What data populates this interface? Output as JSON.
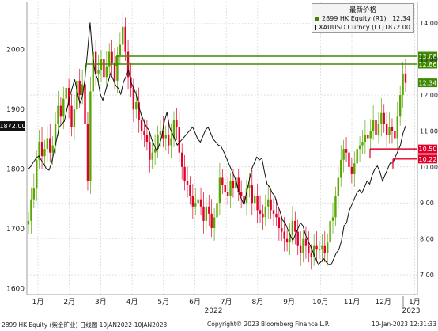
{
  "chart_data": {
    "type": "line",
    "legend_title": "最新价格",
    "legend_position": "top-right",
    "grid": true,
    "series": [
      {
        "name": "2899 HK Equity",
        "axis_tag": "(R1)",
        "last_value": "12.34",
        "color": "#3f8a00",
        "style": "candlestick",
        "axis": "right",
        "values": [
          8.5,
          9.1,
          9.4,
          10.2,
          10.7,
          10.3,
          10.5,
          10.8,
          10.4,
          10.6,
          11.2,
          11.7,
          11.4,
          11.9,
          12.2,
          11.7,
          11.1,
          11.6,
          12.4,
          12.0,
          12.3,
          11.2,
          9.6,
          12.1,
          13.2,
          12.6,
          12.7,
          13.0,
          12.5,
          12.8,
          13.2,
          12.9,
          12.4,
          13.1,
          13.4,
          13.9,
          13.2,
          12.5,
          12.2,
          11.6,
          11.8,
          11.3,
          11.0,
          10.9,
          10.7,
          10.2,
          10.4,
          10.5,
          10.9,
          11.0,
          10.8,
          10.9,
          10.6,
          10.8,
          11.3,
          11.1,
          10.4,
          10.0,
          9.6,
          9.5,
          9.2,
          8.9,
          9.0,
          9.1,
          8.9,
          8.5,
          8.9,
          8.7,
          8.3,
          8.6,
          9.0,
          9.7,
          9.5,
          9.3,
          9.2,
          9.6,
          9.4,
          9.7,
          9.3,
          9.2,
          9.0,
          9.4,
          9.5,
          9.0,
          9.2,
          8.8,
          8.7,
          8.6,
          8.9,
          9.1,
          8.8,
          8.7,
          8.6,
          8.3,
          8.2,
          8.0,
          7.9,
          8.1,
          8.5,
          8.2,
          7.8,
          7.6,
          8.0,
          7.8,
          7.6,
          7.5,
          7.8,
          7.7,
          7.7,
          7.8,
          7.6,
          7.9,
          8.5,
          8.6,
          9.2,
          9.7,
          10.2,
          10.5,
          10.4,
          10.0,
          9.8,
          10.1,
          10.5,
          10.6,
          10.7,
          10.9,
          10.8,
          11.0,
          11.3,
          10.9,
          11.2,
          11.5,
          11.2,
          10.9,
          11.1,
          11.0,
          10.8,
          11.4,
          12.0,
          12.6,
          12.34
        ]
      },
      {
        "name": "XAUUSD Curncy",
        "axis_tag": "(L1)",
        "last_value": "1872.00",
        "color": "#111111",
        "style": "line",
        "axis": "left",
        "values": [
          1800,
          1805,
          1812,
          1818,
          1822,
          1815,
          1808,
          1800,
          1798,
          1810,
          1830,
          1850,
          1870,
          1875,
          1880,
          1900,
          1920,
          1935,
          1950,
          1930,
          1910,
          1920,
          1950,
          1995,
          2045,
          1990,
          1960,
          1950,
          1925,
          1915,
          1930,
          1945,
          1960,
          1950,
          1940,
          1935,
          1925,
          1945,
          1955,
          1965,
          1945,
          1935,
          1925,
          1905,
          1890,
          1880,
          1870,
          1865,
          1850,
          1840,
          1830,
          1840,
          1855,
          1880,
          1895,
          1870,
          1860,
          1850,
          1840,
          1845,
          1850,
          1855,
          1860,
          1865,
          1870,
          1860,
          1850,
          1845,
          1855,
          1865,
          1870,
          1860,
          1850,
          1845,
          1840,
          1838,
          1830,
          1820,
          1810,
          1800,
          1790,
          1780,
          1760,
          1750,
          1740,
          1760,
          1780,
          1800,
          1810,
          1820,
          1815,
          1818,
          1795,
          1775,
          1770,
          1760,
          1755,
          1740,
          1730,
          1715,
          1710,
          1700,
          1690,
          1680,
          1690,
          1700,
          1710,
          1705,
          1690,
          1680,
          1670,
          1660,
          1650,
          1640,
          1645,
          1650,
          1645,
          1640,
          1640,
          1650,
          1660,
          1665,
          1680,
          1705,
          1710,
          1730,
          1740,
          1750,
          1760,
          1765,
          1760,
          1770,
          1780,
          1775,
          1790,
          1800,
          1805,
          1795,
          1780,
          1790,
          1800,
          1810,
          1810,
          1820,
          1830,
          1840,
          1860,
          1872
        ]
      }
    ],
    "left_axis": {
      "ticks": [
        "1600",
        "1700",
        "1800",
        "1900",
        "2000"
      ],
      "ylim": [
        1590,
        2080
      ],
      "current_label": "1872.00"
    },
    "right_axis": {
      "ticks": [
        "7.00",
        "8.00",
        "9.00",
        "10.00",
        "11.00",
        "12.00",
        "13.00",
        "14.00"
      ],
      "ylim": [
        6.45,
        14.6
      ]
    },
    "x_axis": {
      "categories": [
        "1月",
        "2月",
        "3月",
        "4月",
        "5月",
        "6月",
        "7月",
        "8月",
        "9月",
        "10月",
        "11月",
        "12月",
        "1月"
      ],
      "year_labels": [
        "2022",
        "2023"
      ]
    },
    "annotations": [
      {
        "label": "13.08",
        "value": 13.08,
        "color": "#3f8a00"
      },
      {
        "label": "12.86",
        "value": 12.86,
        "color": "#3f8a00"
      },
      {
        "label": "12.34",
        "value": 12.34,
        "color": "#3f8a00",
        "type": "last-price"
      },
      {
        "label": "10.50",
        "value": 10.5,
        "color": "#e0002a"
      },
      {
        "label": "10.22",
        "value": 10.22,
        "color": "#e0002a"
      }
    ]
  },
  "footer": {
    "left": "2899 HK Equity (紫金矿业)  日线图 10JAN2022-10JAN2023",
    "center": "Copyright© 2023 Bloomberg Finance L.P.",
    "right": "10-Jan-2023 12:31:33"
  }
}
